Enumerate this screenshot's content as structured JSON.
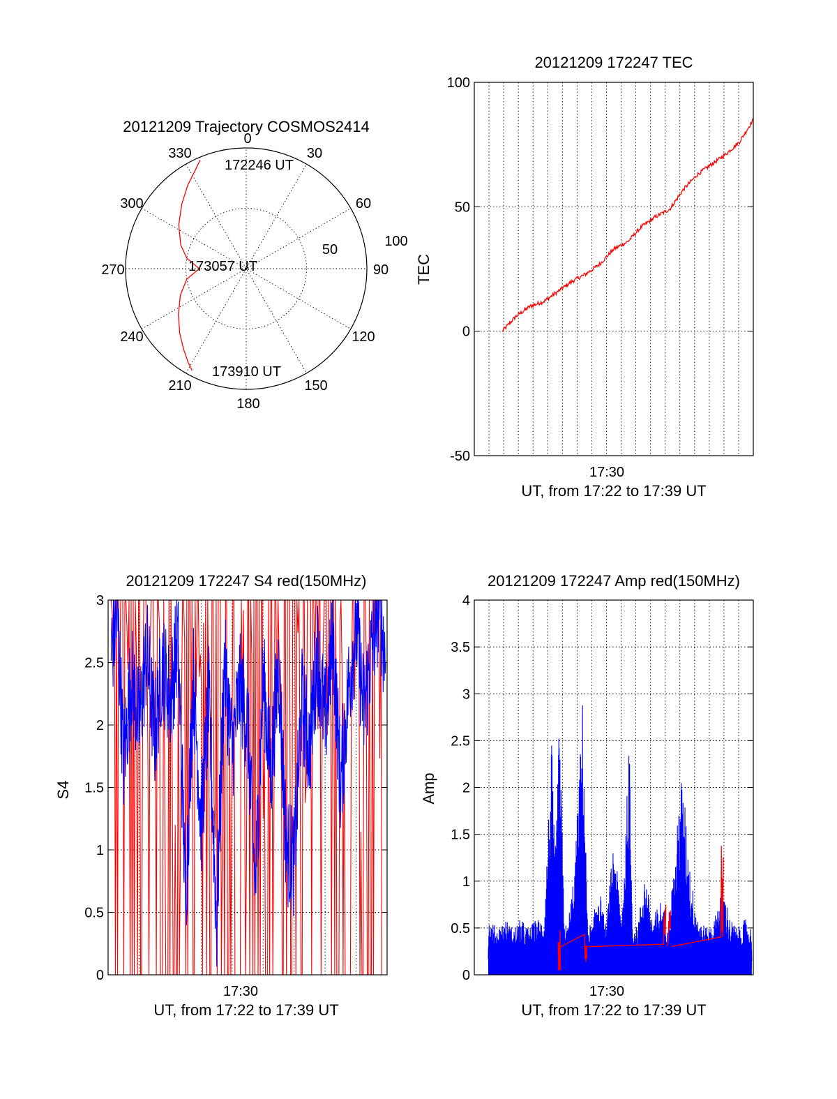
{
  "colors": {
    "red": "#ff0000",
    "blue": "#0000ff",
    "axes": "#000000"
  },
  "chart_data": [
    {
      "type": "polar",
      "title": "20121209 Trajectory COSMOS2414",
      "angle_labels": [
        "0",
        "30",
        "60",
        "90",
        "120",
        "150",
        "180",
        "210",
        "240",
        "270",
        "300",
        "330"
      ],
      "radial_labels": [
        "50",
        "100"
      ],
      "radial_range": [
        0,
        100
      ],
      "points": [
        {
          "label": "172246 UT",
          "azimuth": 337,
          "elevation": 2
        },
        {
          "label": "173057 UT",
          "azimuth": 270,
          "elevation": 55
        },
        {
          "label": "173910 UT",
          "azimuth": 208,
          "elevation": 4
        }
      ],
      "series": [
        {
          "color": "red",
          "azimuth": [
            337,
            332,
            325,
            315,
            303,
            290,
            280,
            270,
            260,
            248,
            236,
            226,
            218,
            212,
            208
          ],
          "elevation": [
            2,
            8,
            14,
            22,
            30,
            38,
            45,
            55,
            45,
            37,
            29,
            21,
            14,
            8,
            4
          ]
        }
      ]
    },
    {
      "type": "line",
      "title": "20121209 172247 TEC",
      "ylabel": "TEC",
      "xlabel": "UT, from 17:22 to 17:39 UT",
      "xtick_labels": [
        "17:30"
      ],
      "xlim": [
        1340,
        1360
      ],
      "ylim": [
        -50,
        100
      ],
      "ytick_labels": [
        "-50",
        "0",
        "50",
        "100"
      ],
      "yticks": [
        -50,
        0,
        50,
        100
      ],
      "grid": true,
      "series": [
        {
          "color": "red",
          "x": [
            1342.0,
            1343.0,
            1344.0,
            1345.0,
            1346.0,
            1347.0,
            1348.0,
            1349.0,
            1350.0,
            1351.0,
            1352.0,
            1353.0,
            1354.0,
            1355.0,
            1356.0,
            1357.0,
            1358.0,
            1359.0,
            1360.0
          ],
          "y": [
            0,
            6,
            10,
            12,
            16,
            20,
            23,
            27,
            33,
            36,
            42,
            46,
            49,
            57,
            63,
            67,
            71,
            76,
            85
          ]
        }
      ]
    },
    {
      "type": "line",
      "title": "20121209 172247 S4 red(150MHz)",
      "ylabel": "S4",
      "xlabel": "UT, from 17:22 to 17:39 UT",
      "xtick_labels": [
        "17:30"
      ],
      "xlim": [
        1341,
        1359
      ],
      "ylim": [
        0,
        3
      ],
      "ytick_labels": [
        "0",
        "0.5",
        "1",
        "1.5",
        "2",
        "2.5",
        "3"
      ],
      "yticks": [
        0,
        0.5,
        1,
        1.5,
        2,
        2.5,
        3
      ],
      "grid": true,
      "series": [
        {
          "color": "red",
          "x": [
            1341.2,
            1341.8,
            1342.5,
            1343.0,
            1343.6,
            1344.1,
            1344.7,
            1345.3,
            1345.9,
            1346.5,
            1347.1,
            1347.7,
            1348.3,
            1348.9,
            1349.5,
            1350.1,
            1350.7,
            1351.3,
            1351.9,
            1352.5,
            1353.1,
            1353.7,
            1354.3,
            1354.9,
            1355.5,
            1356.1,
            1356.7,
            1357.3,
            1357.9,
            1358.5
          ],
          "y": [
            1.0,
            3,
            0,
            3,
            0.2,
            3,
            0,
            2.8,
            0,
            3,
            0,
            3,
            0,
            3,
            0.1,
            3,
            0,
            3,
            0,
            3,
            0,
            3,
            0,
            3,
            0,
            3,
            0,
            3,
            0,
            3
          ]
        },
        {
          "color": "blue",
          "x": [
            1341.2,
            1341.6,
            1342.0,
            1342.5,
            1343.0,
            1343.5,
            1344.0,
            1344.5,
            1345.0,
            1345.5,
            1346.0,
            1346.5,
            1347.0,
            1347.5,
            1348.0,
            1348.5,
            1349.0,
            1349.5,
            1350.0,
            1350.5,
            1351.0,
            1351.5,
            1352.0,
            1352.5,
            1353.0,
            1353.5,
            1354.0,
            1354.5,
            1355.0,
            1355.5,
            1356.0,
            1356.5,
            1357.0,
            1357.5,
            1358.0,
            1358.5,
            1358.9
          ],
          "y": [
            2.6,
            2.9,
            1.7,
            2.4,
            2.0,
            2.6,
            1.9,
            2.5,
            2.2,
            2.7,
            0.6,
            2.4,
            1.2,
            2.2,
            0.4,
            2.5,
            1.8,
            2.3,
            2.0,
            0.7,
            2.4,
            1.6,
            2.5,
            1.0,
            0.9,
            2.2,
            1.8,
            2.6,
            2.0,
            2.7,
            1.5,
            2.3,
            2.8,
            2.1,
            2.6,
            3.0,
            2.5
          ]
        }
      ]
    },
    {
      "type": "line",
      "title": "20121209 172247 Amp red(150MHz)",
      "ylabel": "Amp",
      "xlabel": "UT, from 17:22 to 17:39 UT",
      "xtick_labels": [
        "17:30"
      ],
      "xlim": [
        1341,
        1359
      ],
      "ylim": [
        0,
        4
      ],
      "ytick_labels": [
        "0",
        "0.5",
        "1",
        "1.5",
        "2",
        "2.5",
        "3",
        "3.5",
        "4"
      ],
      "yticks": [
        0,
        0.5,
        1,
        1.5,
        2,
        2.5,
        3,
        3.5,
        4
      ],
      "grid": true,
      "series": [
        {
          "color": "blue",
          "x": [
            1341.9,
            1342.5,
            1343.0,
            1343.5,
            1344.0,
            1344.5,
            1345.0,
            1345.5,
            1346.0,
            1346.2,
            1346.5,
            1346.8,
            1347.0,
            1347.5,
            1348.0,
            1348.3,
            1348.6,
            1349.0,
            1349.5,
            1350.0,
            1350.5,
            1351.0,
            1351.2,
            1351.5,
            1352.0,
            1352.5,
            1353.0,
            1353.5,
            1354.0,
            1354.3,
            1354.6,
            1355.0,
            1355.5,
            1356.0,
            1356.5,
            1357.0,
            1357.5,
            1358.0,
            1358.5,
            1358.9
          ],
          "y": [
            0.6,
            0.5,
            0.6,
            0.5,
            0.6,
            0.5,
            0.6,
            0.6,
            2.5,
            1.2,
            2.8,
            0.6,
            0.5,
            1.2,
            3.0,
            0.6,
            0.5,
            1.0,
            0.5,
            1.5,
            0.6,
            2.5,
            0.6,
            0.5,
            1.1,
            0.6,
            0.8,
            0.6,
            1.3,
            2.2,
            1.8,
            1.0,
            0.6,
            0.5,
            0.6,
            1.0,
            0.6,
            0.5,
            0.6,
            0.5
          ]
        },
        {
          "color": "red",
          "x": [
            1346.5,
            1348.2,
            1353.3,
            1353.6,
            1357.0
          ],
          "y": [
            0.05,
            0.2,
            1.0,
            0.8,
            1.4
          ]
        }
      ]
    }
  ]
}
